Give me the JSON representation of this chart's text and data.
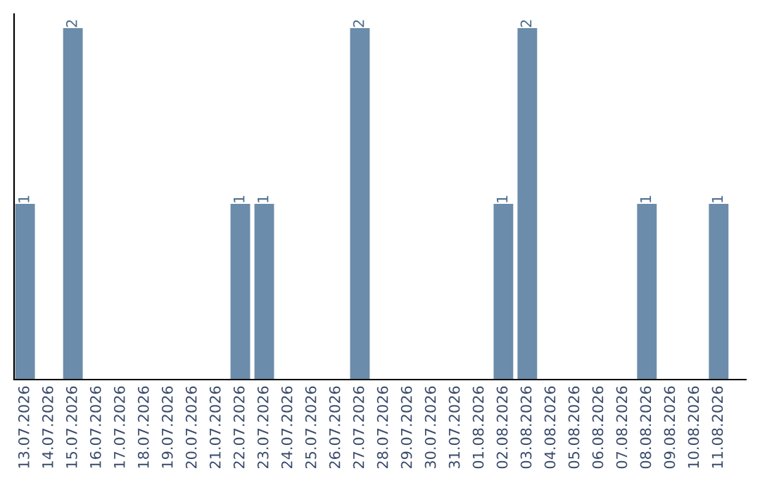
{
  "chart_data": {
    "type": "bar",
    "categories": [
      "13.07.2026",
      "14.07.2026",
      "15.07.2026",
      "16.07.2026",
      "17.07.2026",
      "18.07.2026",
      "19.07.2026",
      "20.07.2026",
      "21.07.2026",
      "22.07.2026",
      "23.07.2026",
      "24.07.2026",
      "25.07.2026",
      "26.07.2026",
      "27.07.2026",
      "28.07.2026",
      "29.07.2026",
      "30.07.2026",
      "31.07.2026",
      "01.08.2026",
      "02.08.2026",
      "03.08.2026",
      "04.08.2026",
      "05.08.2026",
      "06.08.2026",
      "07.08.2026",
      "08.08.2026",
      "09.08.2026",
      "10.08.2026",
      "11.08.2026"
    ],
    "values": [
      1,
      0,
      2,
      0,
      0,
      0,
      0,
      0,
      0,
      1,
      1,
      0,
      0,
      0,
      2,
      0,
      0,
      0,
      0,
      0,
      1,
      2,
      0,
      0,
      0,
      0,
      1,
      0,
      0,
      1
    ],
    "value_labels": [
      "1",
      null,
      "2",
      null,
      null,
      null,
      null,
      null,
      null,
      "1",
      "1",
      null,
      null,
      null,
      "2",
      null,
      null,
      null,
      null,
      null,
      "1",
      "2",
      null,
      null,
      null,
      null,
      "1",
      null,
      null,
      "1"
    ],
    "color": "#6b8caa",
    "grid": false,
    "legend": false
  }
}
